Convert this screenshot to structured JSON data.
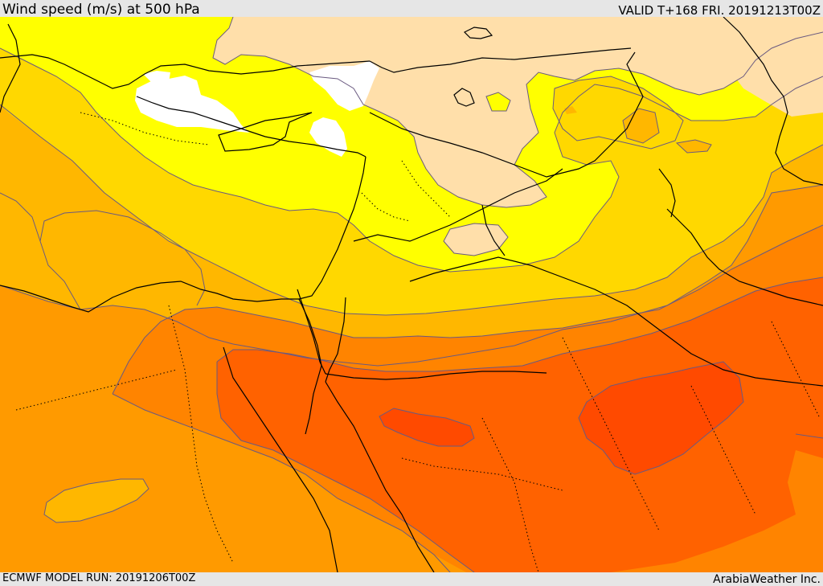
{
  "header": {
    "title": "Wind speed (m/s) at 500 hPa",
    "valid": "VALID T+168 FRI. 20191213T00Z"
  },
  "footer": {
    "model_run": "ECMWF MODEL RUN: 20191206T00Z",
    "credit": "ArabiaWeather Inc."
  },
  "map": {
    "variable": "wind speed",
    "units": "m/s",
    "level": "500 hPa",
    "colors": {
      "no_shade": "#ffffff",
      "band_1": "#ffdfaa",
      "band_2": "#ffff00",
      "band_3": "#ffd800",
      "band_4": "#ffb700",
      "band_5": "#ff9a00",
      "band_6": "#ff8400",
      "band_7": "#ff6200",
      "band_8": "#ff4a00",
      "contour": "#6a5a80",
      "coastline": "#000000"
    }
  }
}
